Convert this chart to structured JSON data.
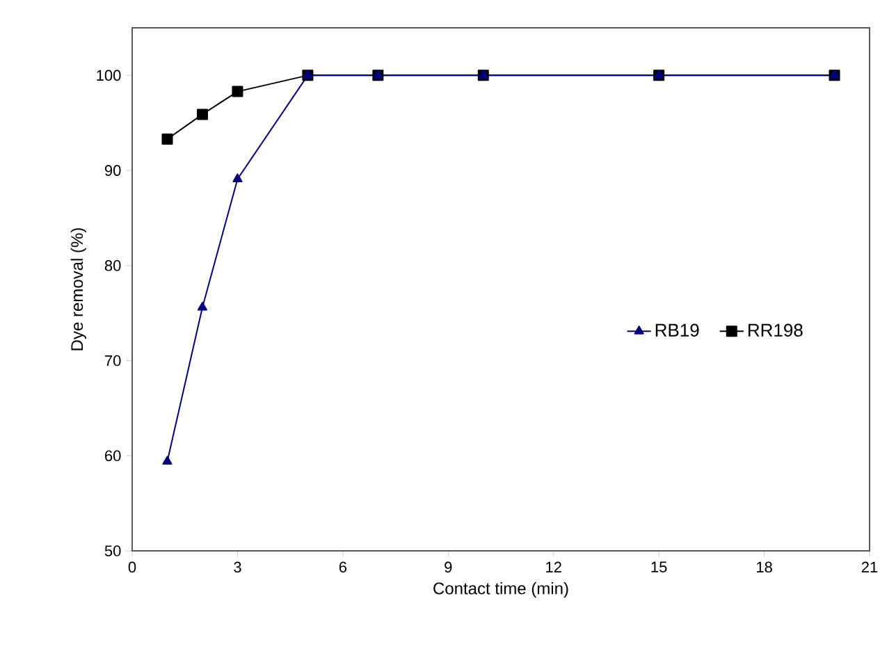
{
  "chart_data": {
    "type": "line",
    "xlabel": "Contact time (min)",
    "ylabel": "Dye removal (%)",
    "xlim": [
      0,
      21
    ],
    "xticks": [
      0,
      3,
      6,
      9,
      12,
      15,
      18,
      21
    ],
    "ylim": [
      50,
      105
    ],
    "yticks": [
      50,
      60,
      70,
      80,
      90,
      100
    ],
    "legend": "right",
    "grid": false,
    "line_style": "solid",
    "series": [
      {
        "name": "RB19",
        "color": "#000080",
        "marker": "triangle",
        "x": [
          1,
          2,
          3,
          5,
          7,
          10,
          15,
          20
        ],
        "values": [
          59.4,
          75.6,
          89.1,
          100,
          100,
          100,
          100,
          100
        ]
      },
      {
        "name": "RR198",
        "color": "#000000",
        "marker": "square",
        "x": [
          1,
          2,
          3,
          5,
          7,
          10,
          15,
          20
        ],
        "values": [
          93.3,
          95.9,
          98.3,
          100,
          100,
          100,
          100,
          100
        ]
      }
    ]
  }
}
